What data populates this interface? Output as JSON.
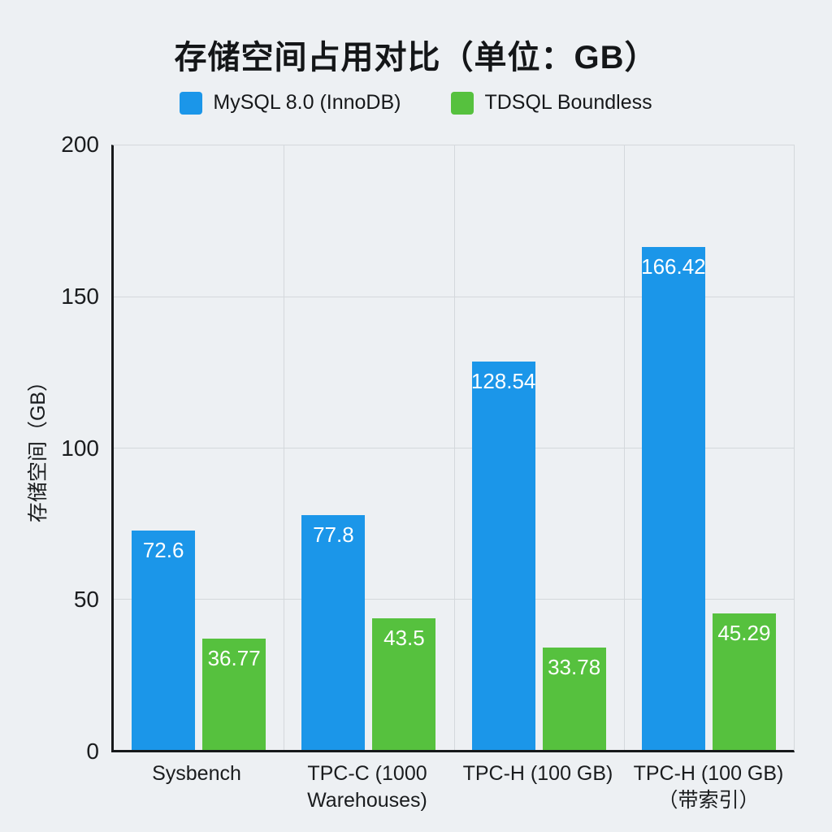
{
  "title": "存储空间占用对比（单位：GB）",
  "colors": {
    "background": "#edf0f3",
    "axis": "#17191b",
    "grid": "#d4d8dc",
    "tick_text": "#1a1c1e",
    "value_label": "#ffffff",
    "mysql_blue": "#1b96e9",
    "tdsql_green": "#56c13e"
  },
  "chart_data": {
    "type": "bar",
    "title": "存储空间占用对比（单位：GB）",
    "xlabel": "",
    "ylabel": "存储空间（GB）",
    "ylim": [
      0,
      200
    ],
    "yticks": [
      0,
      50,
      100,
      150,
      200
    ],
    "grid": true,
    "legend_position": "top",
    "categories": [
      "Sysbench",
      "TPC-C (1000 Warehouses)",
      "TPC-H (100 GB)",
      "TPC-H (100 GB)（带索引）"
    ],
    "series": [
      {
        "name": "MySQL 8.0 (InnoDB)",
        "color": "#1b96e9",
        "values": [
          72.6,
          77.8,
          128.54,
          166.42
        ]
      },
      {
        "name": "TDSQL Boundless",
        "color": "#56c13e",
        "values": [
          36.77,
          43.5,
          33.78,
          45.29
        ]
      }
    ]
  }
}
